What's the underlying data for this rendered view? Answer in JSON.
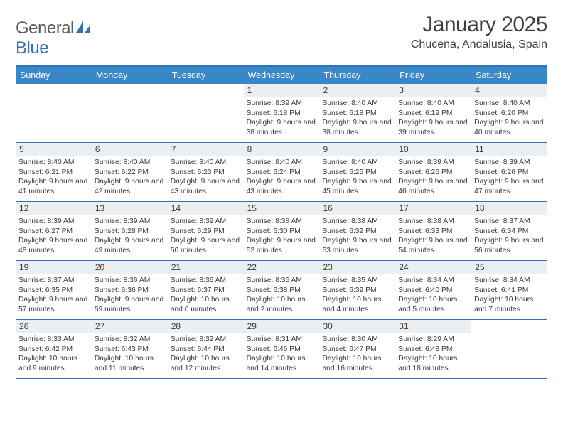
{
  "logo": {
    "part1": "General",
    "part2": "Blue"
  },
  "title": "January 2025",
  "location": "Chucena, Andalusia, Spain",
  "colors": {
    "header_bg": "#3a87c8",
    "border": "#2f72b8",
    "daynum_bg": "#eceff2",
    "text": "#3a3a3a",
    "logo_blue": "#2f72b8",
    "background": "#ffffff"
  },
  "typography": {
    "title_fontsize": 30,
    "location_fontsize": 16,
    "dayhead_fontsize": 12.5,
    "daynum_fontsize": 12,
    "info_fontsize": 10.3,
    "font_family": "Arial"
  },
  "day_headers": [
    "Sunday",
    "Monday",
    "Tuesday",
    "Wednesday",
    "Thursday",
    "Friday",
    "Saturday"
  ],
  "weeks": [
    [
      {
        "empty": true
      },
      {
        "empty": true
      },
      {
        "empty": true
      },
      {
        "day": "1",
        "sunrise": "Sunrise: 8:39 AM",
        "sunset": "Sunset: 6:18 PM",
        "daylight": "Daylight: 9 hours and 38 minutes."
      },
      {
        "day": "2",
        "sunrise": "Sunrise: 8:40 AM",
        "sunset": "Sunset: 6:18 PM",
        "daylight": "Daylight: 9 hours and 38 minutes."
      },
      {
        "day": "3",
        "sunrise": "Sunrise: 8:40 AM",
        "sunset": "Sunset: 6:19 PM",
        "daylight": "Daylight: 9 hours and 39 minutes."
      },
      {
        "day": "4",
        "sunrise": "Sunrise: 8:40 AM",
        "sunset": "Sunset: 6:20 PM",
        "daylight": "Daylight: 9 hours and 40 minutes."
      }
    ],
    [
      {
        "day": "5",
        "sunrise": "Sunrise: 8:40 AM",
        "sunset": "Sunset: 6:21 PM",
        "daylight": "Daylight: 9 hours and 41 minutes."
      },
      {
        "day": "6",
        "sunrise": "Sunrise: 8:40 AM",
        "sunset": "Sunset: 6:22 PM",
        "daylight": "Daylight: 9 hours and 42 minutes."
      },
      {
        "day": "7",
        "sunrise": "Sunrise: 8:40 AM",
        "sunset": "Sunset: 6:23 PM",
        "daylight": "Daylight: 9 hours and 43 minutes."
      },
      {
        "day": "8",
        "sunrise": "Sunrise: 8:40 AM",
        "sunset": "Sunset: 6:24 PM",
        "daylight": "Daylight: 9 hours and 43 minutes."
      },
      {
        "day": "9",
        "sunrise": "Sunrise: 8:40 AM",
        "sunset": "Sunset: 6:25 PM",
        "daylight": "Daylight: 9 hours and 45 minutes."
      },
      {
        "day": "10",
        "sunrise": "Sunrise: 8:39 AM",
        "sunset": "Sunset: 6:26 PM",
        "daylight": "Daylight: 9 hours and 46 minutes."
      },
      {
        "day": "11",
        "sunrise": "Sunrise: 8:39 AM",
        "sunset": "Sunset: 6:26 PM",
        "daylight": "Daylight: 9 hours and 47 minutes."
      }
    ],
    [
      {
        "day": "12",
        "sunrise": "Sunrise: 8:39 AM",
        "sunset": "Sunset: 6:27 PM",
        "daylight": "Daylight: 9 hours and 48 minutes."
      },
      {
        "day": "13",
        "sunrise": "Sunrise: 8:39 AM",
        "sunset": "Sunset: 6:28 PM",
        "daylight": "Daylight: 9 hours and 49 minutes."
      },
      {
        "day": "14",
        "sunrise": "Sunrise: 8:39 AM",
        "sunset": "Sunset: 6:29 PM",
        "daylight": "Daylight: 9 hours and 50 minutes."
      },
      {
        "day": "15",
        "sunrise": "Sunrise: 8:38 AM",
        "sunset": "Sunset: 6:30 PM",
        "daylight": "Daylight: 9 hours and 52 minutes."
      },
      {
        "day": "16",
        "sunrise": "Sunrise: 8:38 AM",
        "sunset": "Sunset: 6:32 PM",
        "daylight": "Daylight: 9 hours and 53 minutes."
      },
      {
        "day": "17",
        "sunrise": "Sunrise: 8:38 AM",
        "sunset": "Sunset: 6:33 PM",
        "daylight": "Daylight: 9 hours and 54 minutes."
      },
      {
        "day": "18",
        "sunrise": "Sunrise: 8:37 AM",
        "sunset": "Sunset: 6:34 PM",
        "daylight": "Daylight: 9 hours and 56 minutes."
      }
    ],
    [
      {
        "day": "19",
        "sunrise": "Sunrise: 8:37 AM",
        "sunset": "Sunset: 6:35 PM",
        "daylight": "Daylight: 9 hours and 57 minutes."
      },
      {
        "day": "20",
        "sunrise": "Sunrise: 8:36 AM",
        "sunset": "Sunset: 6:36 PM",
        "daylight": "Daylight: 9 hours and 59 minutes."
      },
      {
        "day": "21",
        "sunrise": "Sunrise: 8:36 AM",
        "sunset": "Sunset: 6:37 PM",
        "daylight": "Daylight: 10 hours and 0 minutes."
      },
      {
        "day": "22",
        "sunrise": "Sunrise: 8:35 AM",
        "sunset": "Sunset: 6:38 PM",
        "daylight": "Daylight: 10 hours and 2 minutes."
      },
      {
        "day": "23",
        "sunrise": "Sunrise: 8:35 AM",
        "sunset": "Sunset: 6:39 PM",
        "daylight": "Daylight: 10 hours and 4 minutes."
      },
      {
        "day": "24",
        "sunrise": "Sunrise: 8:34 AM",
        "sunset": "Sunset: 6:40 PM",
        "daylight": "Daylight: 10 hours and 5 minutes."
      },
      {
        "day": "25",
        "sunrise": "Sunrise: 8:34 AM",
        "sunset": "Sunset: 6:41 PM",
        "daylight": "Daylight: 10 hours and 7 minutes."
      }
    ],
    [
      {
        "day": "26",
        "sunrise": "Sunrise: 8:33 AM",
        "sunset": "Sunset: 6:42 PM",
        "daylight": "Daylight: 10 hours and 9 minutes."
      },
      {
        "day": "27",
        "sunrise": "Sunrise: 8:32 AM",
        "sunset": "Sunset: 6:43 PM",
        "daylight": "Daylight: 10 hours and 11 minutes."
      },
      {
        "day": "28",
        "sunrise": "Sunrise: 8:32 AM",
        "sunset": "Sunset: 6:44 PM",
        "daylight": "Daylight: 10 hours and 12 minutes."
      },
      {
        "day": "29",
        "sunrise": "Sunrise: 8:31 AM",
        "sunset": "Sunset: 6:46 PM",
        "daylight": "Daylight: 10 hours and 14 minutes."
      },
      {
        "day": "30",
        "sunrise": "Sunrise: 8:30 AM",
        "sunset": "Sunset: 6:47 PM",
        "daylight": "Daylight: 10 hours and 16 minutes."
      },
      {
        "day": "31",
        "sunrise": "Sunrise: 8:29 AM",
        "sunset": "Sunset: 6:48 PM",
        "daylight": "Daylight: 10 hours and 18 minutes."
      },
      {
        "empty": true
      }
    ]
  ]
}
